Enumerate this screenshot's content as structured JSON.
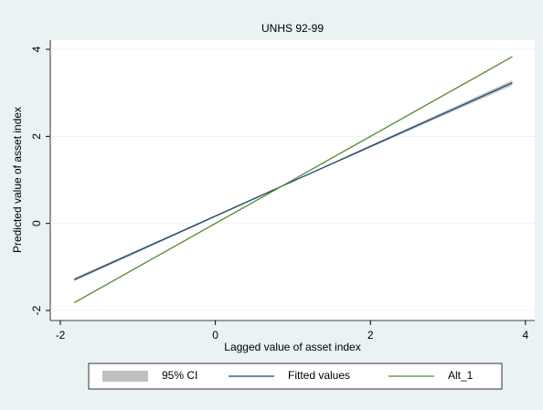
{
  "chart_data": {
    "type": "line",
    "title": "UNHS 92-99",
    "x_label": "Lagged value of asset index",
    "y_label": "Predicted value of asset index",
    "x": [
      -1.82,
      1,
      3.83
    ],
    "series": [
      {
        "name": "95% CI",
        "color": "#c0c0c0",
        "lower": [
          -1.33,
          0.96,
          3.17
        ],
        "upper": [
          -1.25,
          0.98,
          3.29
        ]
      },
      {
        "name": "Fitted values",
        "color": "#1a476f",
        "values": [
          -1.29,
          0.97,
          3.23
        ]
      },
      {
        "name": "Alt_1",
        "color": "#55882f",
        "values": [
          -1.82,
          1,
          3.83
        ]
      }
    ],
    "xlim": [
      -2.13,
      4.12
    ],
    "ylim": [
      -2.23,
      4.21
    ],
    "xticks": [
      -2,
      0,
      2,
      4
    ],
    "yticks": [
      -2,
      0,
      2,
      4
    ],
    "grid": true,
    "legend": "bottom"
  }
}
